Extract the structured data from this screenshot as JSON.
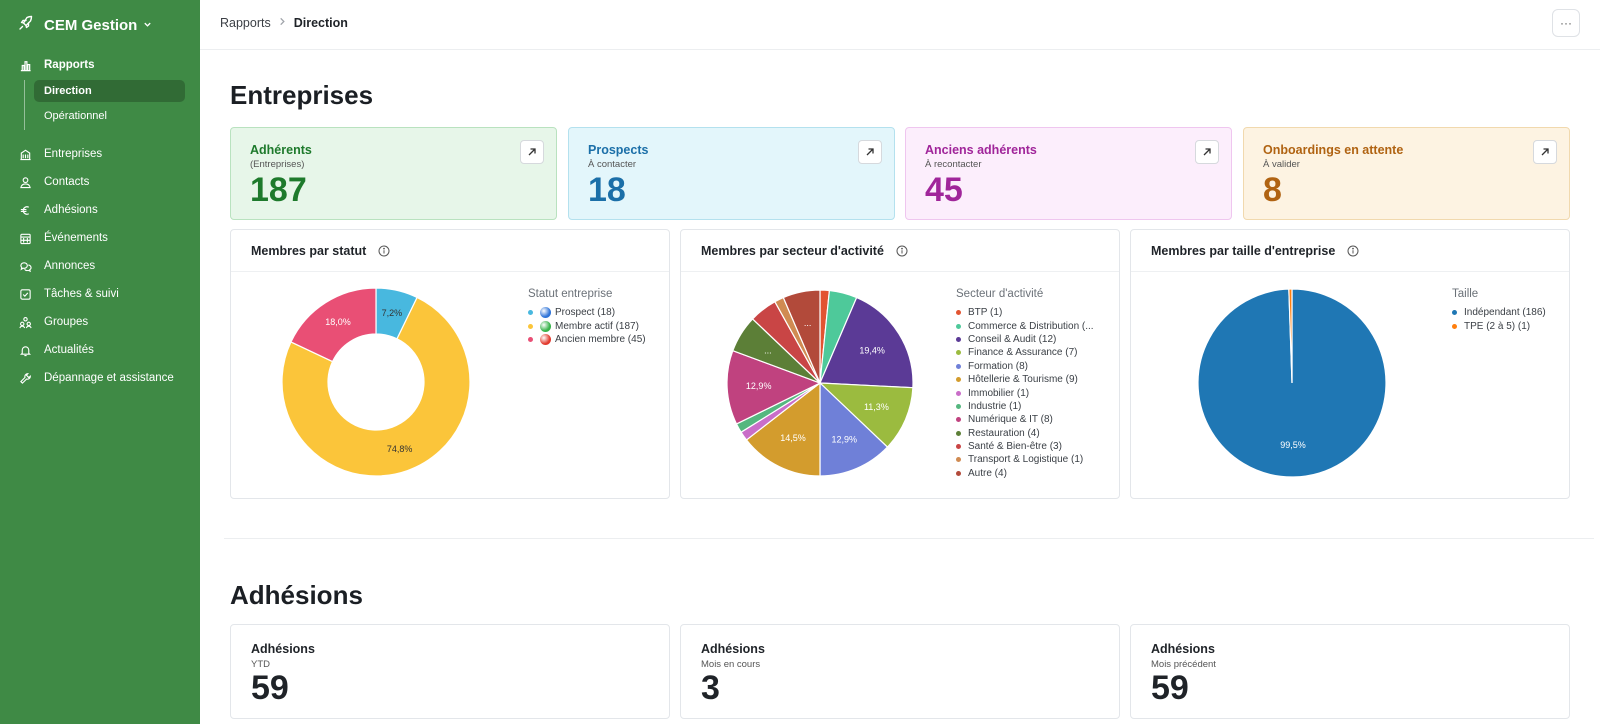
{
  "app": {
    "name": "CEM Gestion"
  },
  "sidebar": {
    "reports": {
      "label": "Rapports",
      "children": [
        "Direction",
        "Opérationnel"
      ],
      "active_child": "Direction"
    },
    "items": [
      {
        "label": "Entreprises",
        "icon": "building-icon"
      },
      {
        "label": "Contacts",
        "icon": "user-icon"
      },
      {
        "label": "Adhésions",
        "icon": "euro-icon"
      },
      {
        "label": "Événements",
        "icon": "calendar-icon"
      },
      {
        "label": "Annonces",
        "icon": "chat-icon"
      },
      {
        "label": "Tâches & suivi",
        "icon": "checkbox-icon"
      },
      {
        "label": "Groupes",
        "icon": "group-icon"
      },
      {
        "label": "Actualités",
        "icon": "bell-icon"
      },
      {
        "label": "Dépannage et assistance",
        "icon": "wrench-icon"
      }
    ]
  },
  "header": {
    "breadcrumb": [
      "Rapports",
      "Direction"
    ],
    "more_label": "···"
  },
  "sections": {
    "entreprises": "Entreprises",
    "adhesions": "Adhésions"
  },
  "kpis": [
    {
      "title": "Adhérents",
      "subtitle": "(Entreprises)",
      "value": "187",
      "color": "#1e7a2c",
      "bg": "#e7f6e9",
      "border": "#b9e2bf"
    },
    {
      "title": "Prospects",
      "subtitle": "À contacter",
      "value": "18",
      "color": "#1b6fa8",
      "bg": "#e3f6fb",
      "border": "#b4e1ee"
    },
    {
      "title": "Anciens adhérents",
      "subtitle": "À recontacter",
      "value": "45",
      "color": "#a0259a",
      "bg": "#fceefc",
      "border": "#efc6ef"
    },
    {
      "title": "Onboardings en attente",
      "subtitle": "À valider",
      "value": "8",
      "color": "#b06312",
      "bg": "#fdf3e2",
      "border": "#f1d9ae"
    }
  ],
  "charts": {
    "statut": {
      "title": "Membres par statut",
      "legend_title": "Statut entreprise"
    },
    "secteur": {
      "title": "Membres par secteur d'activité",
      "legend_title": "Secteur d'activité"
    },
    "taille": {
      "title": "Membres par taille d'entreprise",
      "legend_title": "Taille"
    }
  },
  "chart_data": [
    {
      "type": "pie",
      "variant": "donut",
      "title": "Membres par statut",
      "legend_title": "Statut entreprise",
      "categories": [
        "Prospect (18)",
        "Membre actif (187)",
        "Ancien membre (45)"
      ],
      "values": [
        18,
        187,
        45
      ],
      "data_labels": [
        "7,2%",
        "74,8%",
        "18,0%"
      ],
      "colors": [
        "#48b8df",
        "#fbc53a",
        "#e94f75"
      ],
      "emoji_colors": [
        "#2f74d8",
        "#37b34a",
        "#e23b2f"
      ]
    },
    {
      "type": "pie",
      "title": "Membres par secteur d'activité",
      "legend_title": "Secteur d'activité",
      "categories": [
        "BTP (1)",
        "Commerce & Distribution (...",
        "Conseil & Audit (12)",
        "Finance & Assurance (7)",
        "Formation (8)",
        "Hôtellerie & Tourisme (9)",
        "Immobilier (1)",
        "Industrie (1)",
        "Numérique & IT (8)",
        "Restauration (4)",
        "Santé & Bien-être (3)",
        "Transport & Logistique (1)",
        "Autre (4)"
      ],
      "values": [
        1,
        3,
        12,
        7,
        8,
        9,
        1,
        1,
        8,
        4,
        3,
        1,
        4
      ],
      "data_labels": [
        "",
        "",
        "19,4%",
        "11,3%",
        "12,9%",
        "14,5%",
        "",
        "",
        "12,9%",
        "...",
        "",
        "",
        "..."
      ],
      "colors": [
        "#e25431",
        "#4ec99a",
        "#5b3a96",
        "#9bbb3f",
        "#6f80d8",
        "#d39c2d",
        "#c96ec8",
        "#55b77f",
        "#c0427f",
        "#5c7f37",
        "#c94545",
        "#d08b52",
        "#b24a3a"
      ]
    },
    {
      "type": "pie",
      "title": "Membres par taille d'entreprise",
      "legend_title": "Taille",
      "categories": [
        "Indépendant (186)",
        "TPE (2 à 5) (1)"
      ],
      "values": [
        186,
        1
      ],
      "data_labels": [
        "99,5%",
        ""
      ],
      "colors": [
        "#1f77b4",
        "#ff7f0e"
      ]
    }
  ],
  "adhesions": [
    {
      "title": "Adhésions",
      "subtitle": "YTD",
      "value": "59"
    },
    {
      "title": "Adhésions",
      "subtitle": "Mois en cours",
      "value": "3"
    },
    {
      "title": "Adhésions",
      "subtitle": "Mois précédent",
      "value": "59"
    }
  ]
}
